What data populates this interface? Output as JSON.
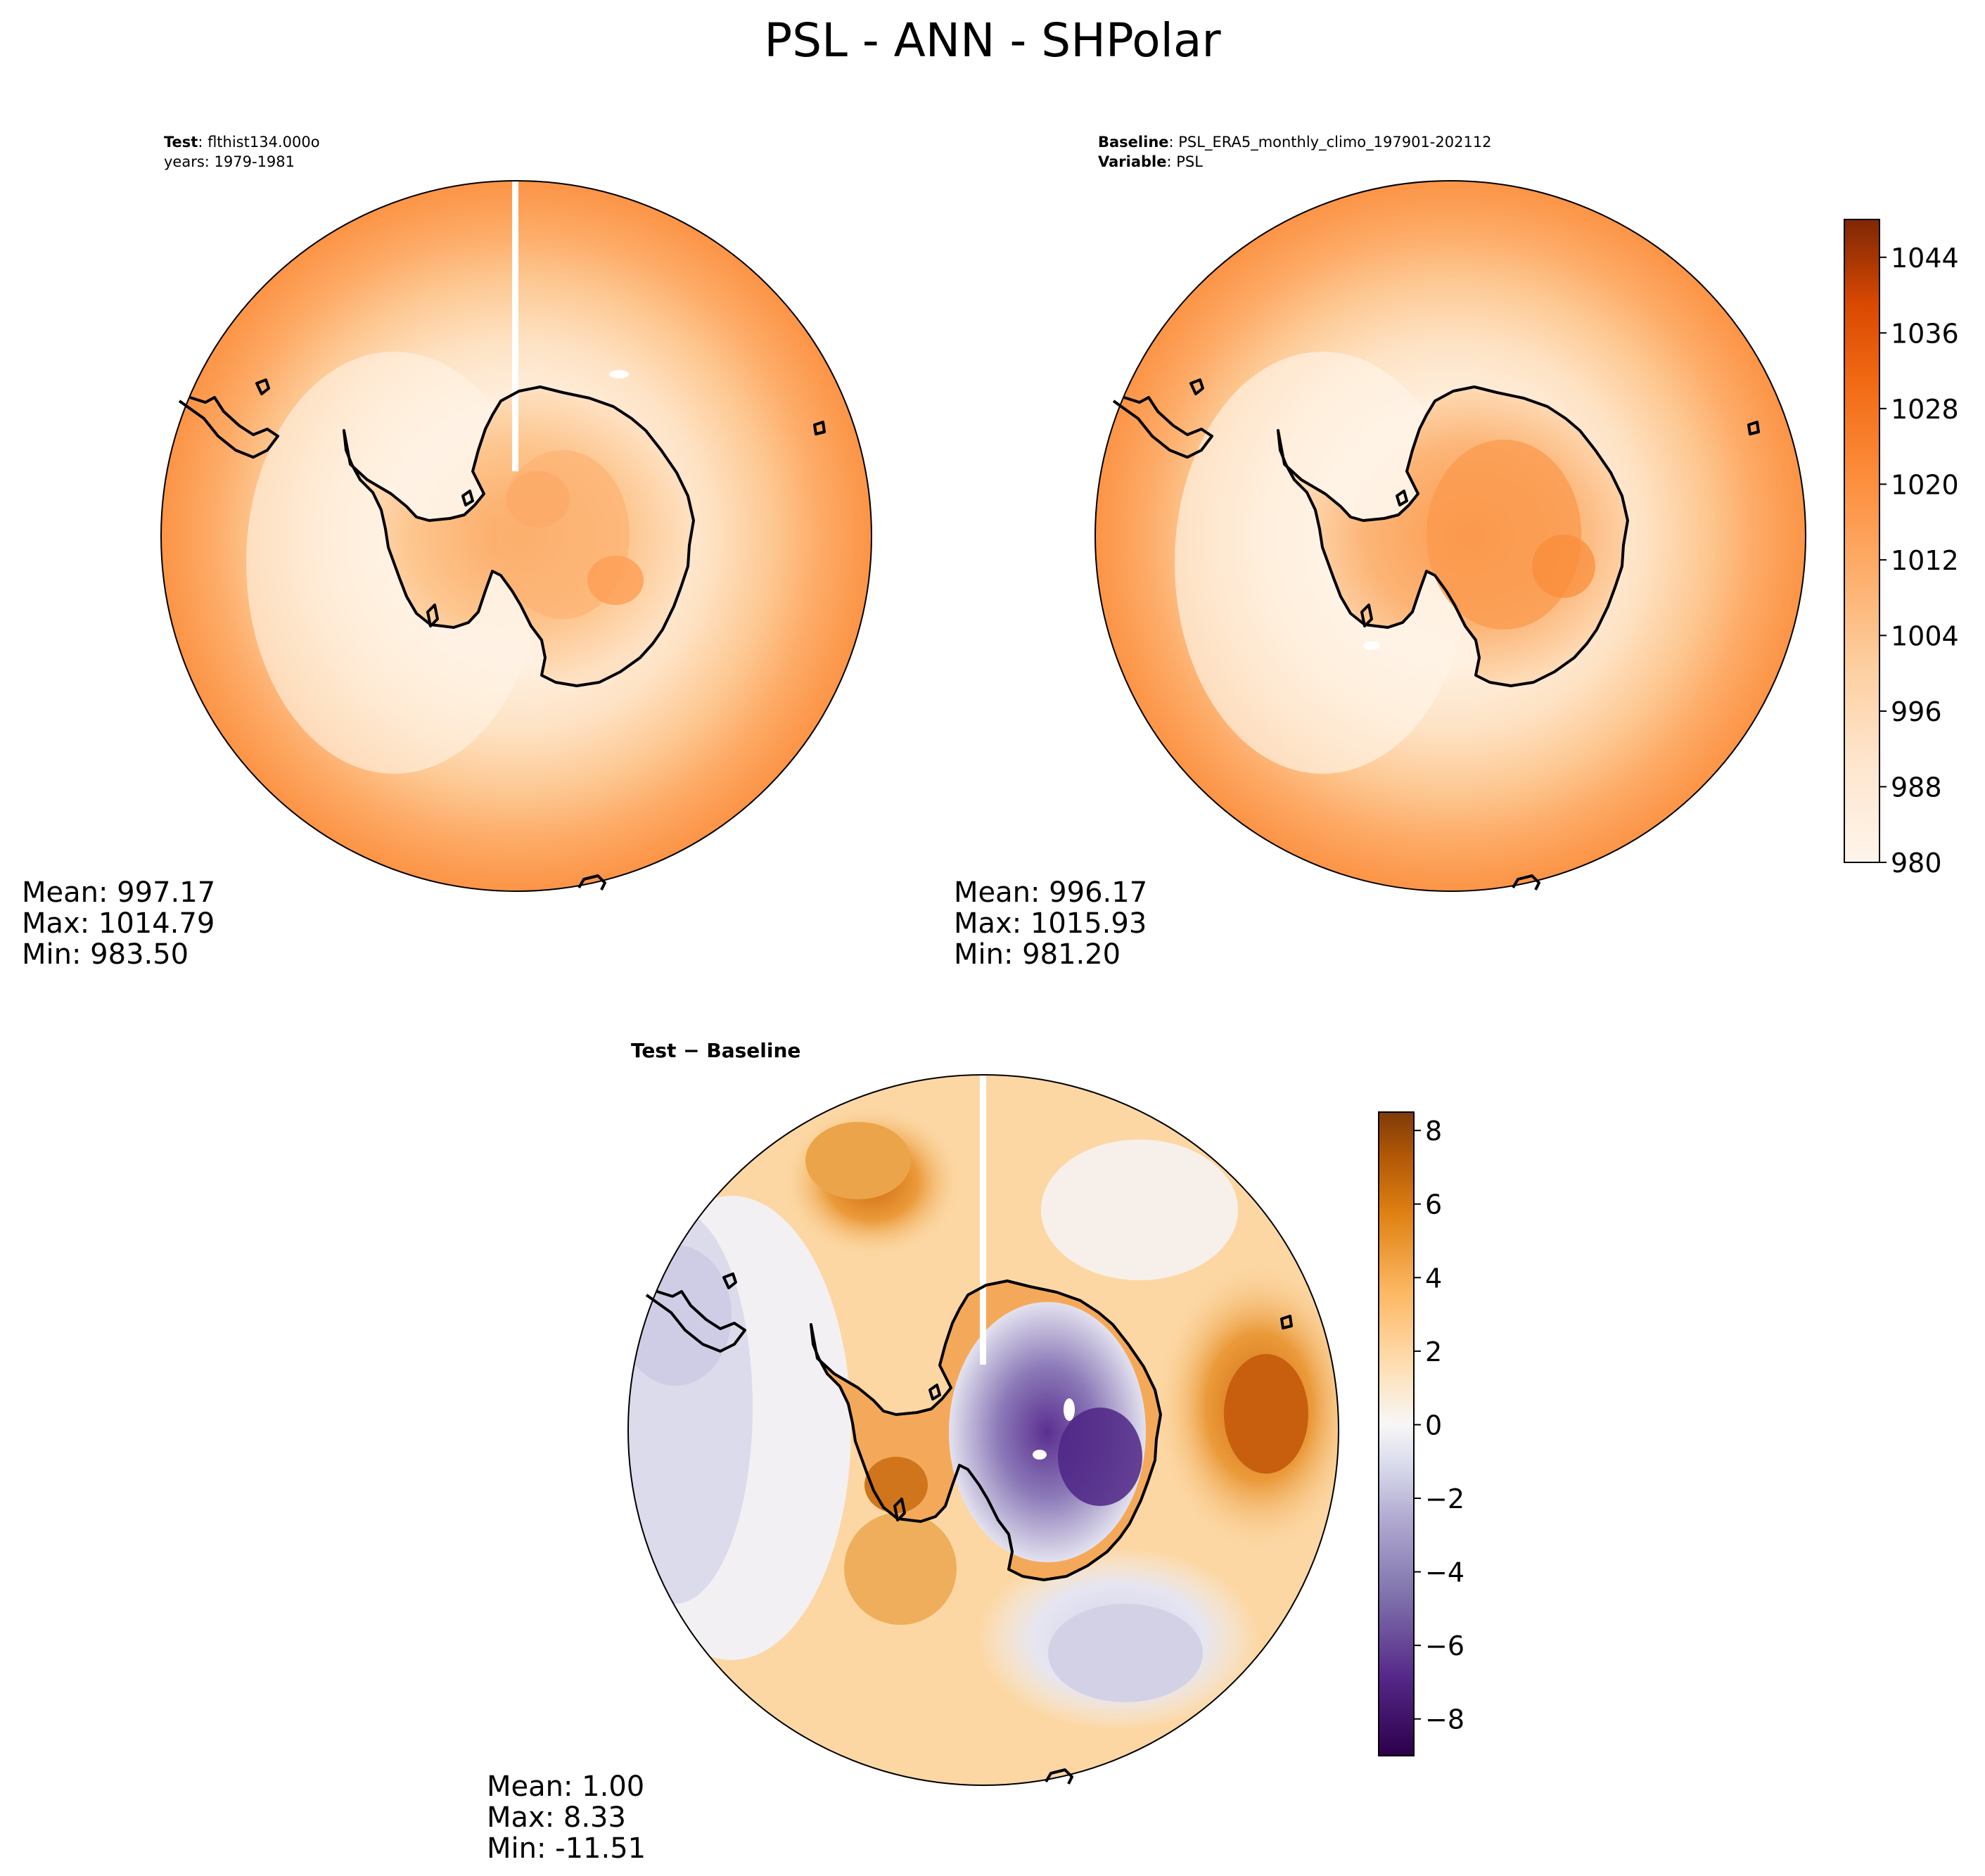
{
  "title": "PSL - ANN - SHPolar",
  "colors": {
    "psl_scale": [
      "#fff5eb",
      "#fee6ce",
      "#fdd0a2",
      "#fdae6b",
      "#fd8d3c",
      "#f16913",
      "#d94801",
      "#a63603",
      "#7f2704"
    ],
    "diff_scale": [
      "#2d004b",
      "#542788",
      "#8073ac",
      "#b2abd2",
      "#d8daeb",
      "#f7f7f7",
      "#fee0b6",
      "#fdb863",
      "#e08214",
      "#b35806",
      "#7f3b08"
    ],
    "coastline": "#000000"
  },
  "panels": {
    "test": {
      "label_bold": "Test",
      "label_rest": ": flthist134.000o",
      "label_line2": "years: 1979-1981",
      "stats": [
        "Mean: 997.17",
        "Max: 1014.79",
        "Min: 983.50"
      ]
    },
    "baseline": {
      "label_bold": "Baseline",
      "label_rest": ": PSL_ERA5_monthly_climo_197901-202112",
      "label2_bold": "Variable",
      "label2_rest": ": PSL",
      "stats": [
        "Mean: 996.17",
        "Max: 1015.93",
        "Min: 981.20"
      ]
    },
    "diff": {
      "label_bold": "Test − Baseline",
      "stats": [
        "Mean:  1.00",
        "Max:  8.33",
        "Min: -11.51"
      ]
    }
  },
  "chart_data": [
    {
      "type": "heatmap",
      "name": "Test",
      "projection": "south-polar-stereographic",
      "mean": 997.17,
      "max": 1014.79,
      "min": 983.5,
      "colorbar": {
        "range": [
          980,
          1048
        ],
        "ticks": [
          "980",
          "988",
          "996",
          "1004",
          "1012",
          "1020",
          "1028",
          "1036",
          "1044"
        ]
      }
    },
    {
      "type": "heatmap",
      "name": "Baseline",
      "projection": "south-polar-stereographic",
      "mean": 996.17,
      "max": 1015.93,
      "min": 981.2,
      "colorbar": {
        "range": [
          980,
          1048
        ],
        "ticks": [
          "980",
          "988",
          "996",
          "1004",
          "1012",
          "1020",
          "1028",
          "1036",
          "1044"
        ]
      }
    },
    {
      "type": "heatmap",
      "name": "Test − Baseline",
      "projection": "south-polar-stereographic",
      "mean": 1.0,
      "max": 8.33,
      "min": -11.51,
      "colorbar": {
        "range": [
          -9,
          8.5
        ],
        "ticks": [
          "−8",
          "−6",
          "−4",
          "−2",
          "0",
          "2",
          "4",
          "6",
          "8"
        ]
      }
    }
  ]
}
